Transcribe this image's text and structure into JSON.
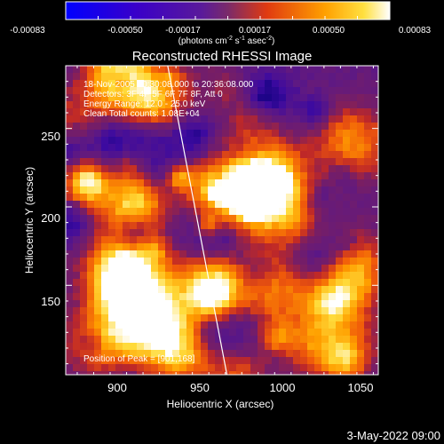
{
  "colorbar": {
    "ticks": [
      "-0.00083",
      "-0.00050",
      "-0.00017",
      "0.00017",
      "0.00050",
      "0.00083"
    ],
    "unit_label": "(photons cm-2 s-1 asec-2)",
    "unit_text": {
      "a": "(photons cm",
      "b": "-2",
      "c": " s",
      "d": "-1",
      "e": " asec",
      "f": "-2",
      "g": ")"
    },
    "range": [
      -0.00083,
      0.00083
    ],
    "colors": [
      "#0000ff",
      "#3a00c8",
      "#5a1a9a",
      "#6a2a7a",
      "#ff6a00",
      "#ffd000",
      "#ffffff"
    ]
  },
  "chart_data": {
    "type": "heatmap",
    "title": "Reconstructed RHESSI Image",
    "xlabel": "Heliocentric X (arcsec)",
    "ylabel": "Heliocentric Y (arcsec)",
    "xlim": [
      868,
      1058
    ],
    "ylim": [
      93,
      290
    ],
    "xticks": [
      900,
      950,
      1000,
      1050
    ],
    "yticks": [
      150,
      200,
      250
    ],
    "peak": {
      "x": 901,
      "y": 168
    },
    "limb_line": [
      [
        930,
        290
      ],
      [
        966,
        93
      ]
    ]
  },
  "overlay": {
    "time_range": "18-Nov-2005 20:30:08.000 to 20:36:08.000",
    "detectors": "Detectors: 3F 4F 5F 6F 7F 8F, Att 0",
    "energy": "Energy Range: 12.0 - 25.0 keV",
    "clean": "Clean     Total counts: 1.08E+04",
    "peak_position": "Position of Peak = [901,168]"
  },
  "footer": {
    "date": "3-May-2022 09:00"
  }
}
